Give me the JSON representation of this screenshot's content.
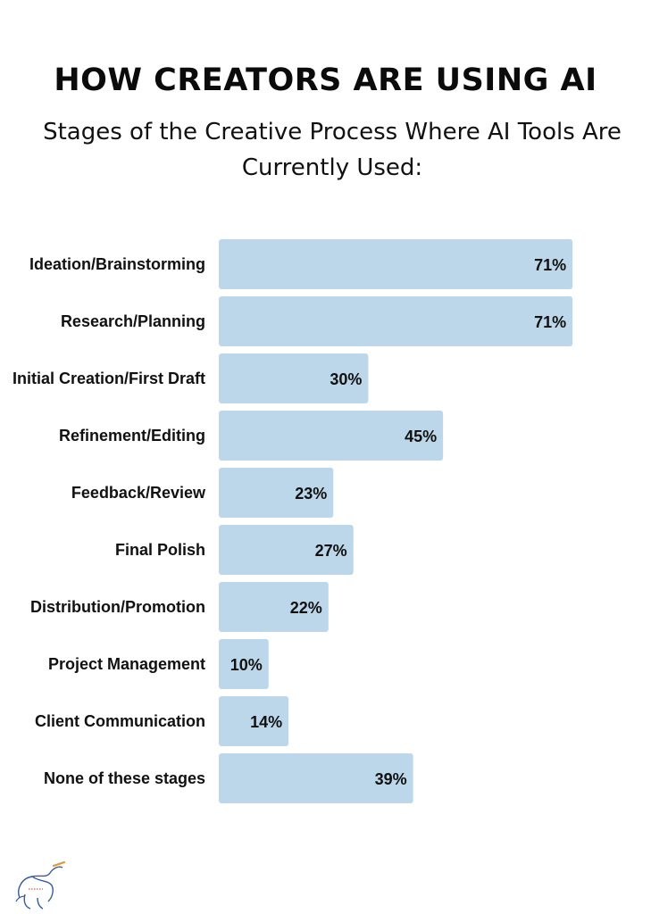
{
  "chart_data": {
    "type": "bar",
    "orientation": "horizontal",
    "title": "HOW CREATORS ARE USING AI",
    "subtitle": "Stages of the Creative Process Where AI Tools Are Currently Used:",
    "categories": [
      "Ideation/Brainstorming",
      "Research/Planning",
      "Initial Creation/First Draft",
      "Refinement/Editing",
      "Feedback/Review",
      "Final Polish",
      "Distribution/Promotion",
      "Project Management",
      "Client Communication",
      "None of these stages"
    ],
    "values": [
      71,
      71,
      30,
      45,
      23,
      27,
      22,
      10,
      14,
      39
    ],
    "value_labels": [
      "71%",
      "71%",
      "30%",
      "45%",
      "23%",
      "27%",
      "22%",
      "10%",
      "14%",
      "39%"
    ],
    "unit": "%",
    "xlim": [
      0,
      100
    ],
    "grid": false,
    "legend": "none",
    "bar_color": "#bcd7e9"
  }
}
